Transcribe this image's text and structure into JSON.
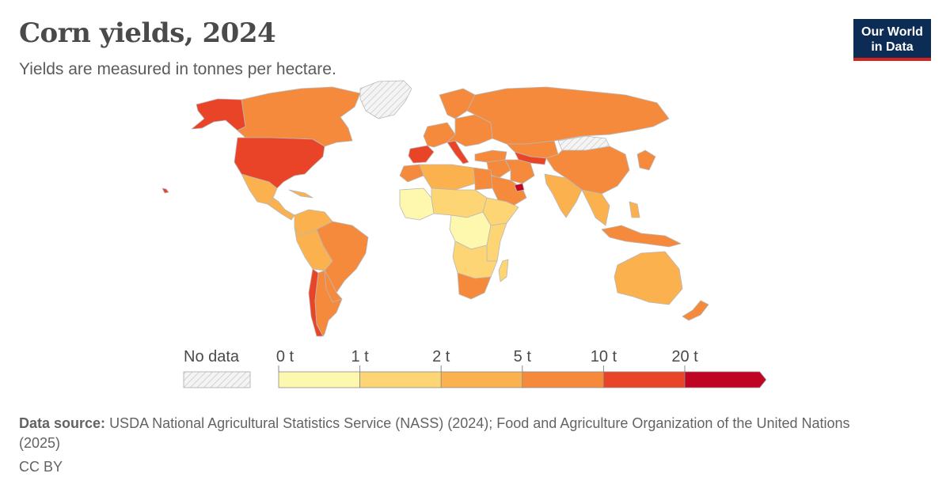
{
  "header": {
    "title": "Corn yields, 2024",
    "subtitle": "Yields are measured in tonnes per hectare."
  },
  "logo": {
    "line1": "Our World",
    "line2": "in Data"
  },
  "legend": {
    "no_data_label": "No data",
    "bins": [
      {
        "from": "0 t",
        "to": "1 t",
        "color": "#fef8ae"
      },
      {
        "from": "1 t",
        "to": "2 t",
        "color": "#fdd575"
      },
      {
        "from": "2 t",
        "to": "5 t",
        "color": "#fbb14e"
      },
      {
        "from": "5 t",
        "to": "10 t",
        "color": "#f68a3c"
      },
      {
        "from": "10 t",
        "to": "20 t",
        "color": "#ea4428"
      },
      {
        "from": "20 t",
        "to": "",
        "color": "#c00524"
      }
    ],
    "tick_labels": [
      "0 t",
      "1 t",
      "2 t",
      "5 t",
      "10 t",
      "20 t"
    ]
  },
  "footer": {
    "source_label": "Data source:",
    "source_text": "USDA National Agricultural Statistics Service (NASS) (2024); Food and Agriculture Organization of the United Nations (2025)",
    "license": "CC BY"
  },
  "colors": {
    "no_data": "#eeeeee",
    "border": "#b8b8b8"
  },
  "regions": [
    {
      "name": "usa",
      "bin": 4
    },
    {
      "name": "canada",
      "bin": 3
    },
    {
      "name": "alaska",
      "bin": 4
    },
    {
      "name": "greenland",
      "bin": -1
    },
    {
      "name": "mexico",
      "bin": 2
    },
    {
      "name": "central-america",
      "bin": 2
    },
    {
      "name": "caribbean",
      "bin": 2
    },
    {
      "name": "colombia-venezuela",
      "bin": 2
    },
    {
      "name": "brazil",
      "bin": 3
    },
    {
      "name": "peru-bolivia",
      "bin": 2
    },
    {
      "name": "chile",
      "bin": 4
    },
    {
      "name": "argentina",
      "bin": 3
    },
    {
      "name": "paraguay-uruguay",
      "bin": 3
    },
    {
      "name": "spain-portugal",
      "bin": 4
    },
    {
      "name": "france-western-europe",
      "bin": 3
    },
    {
      "name": "italy",
      "bin": 4
    },
    {
      "name": "scandinavia",
      "bin": 3
    },
    {
      "name": "eastern-europe",
      "bin": 3
    },
    {
      "name": "russia",
      "bin": 3
    },
    {
      "name": "turkey",
      "bin": 3
    },
    {
      "name": "middle-east",
      "bin": 3
    },
    {
      "name": "arabian-peninsula",
      "bin": 3
    },
    {
      "name": "uae",
      "bin": 5
    },
    {
      "name": "iran",
      "bin": 3
    },
    {
      "name": "central-asia-uzbekistan",
      "bin": 4
    },
    {
      "name": "kazakhstan",
      "bin": 3
    },
    {
      "name": "mongolia",
      "bin": -1
    },
    {
      "name": "china",
      "bin": 3
    },
    {
      "name": "korea-japan",
      "bin": 3
    },
    {
      "name": "india",
      "bin": 2
    },
    {
      "name": "southeast-asia",
      "bin": 2
    },
    {
      "name": "indonesia",
      "bin": 3
    },
    {
      "name": "philippines",
      "bin": 2
    },
    {
      "name": "australia",
      "bin": 2
    },
    {
      "name": "new-zealand",
      "bin": 3
    },
    {
      "name": "north-africa",
      "bin": 2
    },
    {
      "name": "morocco",
      "bin": 3
    },
    {
      "name": "egypt",
      "bin": 3
    },
    {
      "name": "west-africa",
      "bin": 0
    },
    {
      "name": "sahel",
      "bin": 1
    },
    {
      "name": "ethiopia-horn",
      "bin": 1
    },
    {
      "name": "central-africa",
      "bin": 0
    },
    {
      "name": "east-africa",
      "bin": 1
    },
    {
      "name": "southern-africa",
      "bin": 1
    },
    {
      "name": "south-africa",
      "bin": 3
    },
    {
      "name": "madagascar",
      "bin": 1
    },
    {
      "name": "hawaii",
      "bin": 4
    }
  ]
}
